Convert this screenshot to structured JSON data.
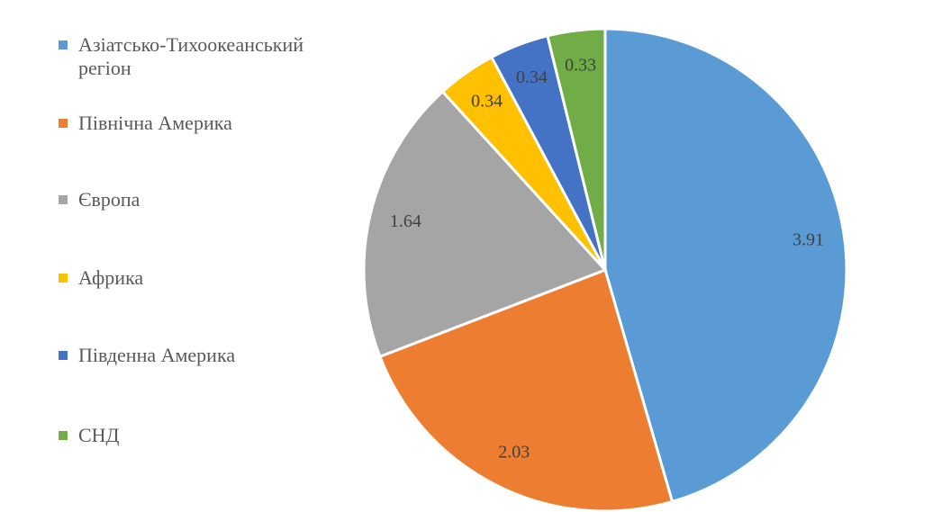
{
  "chart_data": {
    "type": "pie",
    "categories": [
      "Азіатсько-Тихоокеанський регіон",
      "Північна Америка",
      "Європа",
      "Африка",
      "Південна Америка",
      "СНД"
    ],
    "values": [
      3.91,
      2.03,
      1.64,
      0.34,
      0.34,
      0.33
    ],
    "colors": [
      "#5b9bd5",
      "#ed7d31",
      "#a5a5a5",
      "#ffc000",
      "#4472c4",
      "#70ad47"
    ],
    "legend": "left"
  }
}
